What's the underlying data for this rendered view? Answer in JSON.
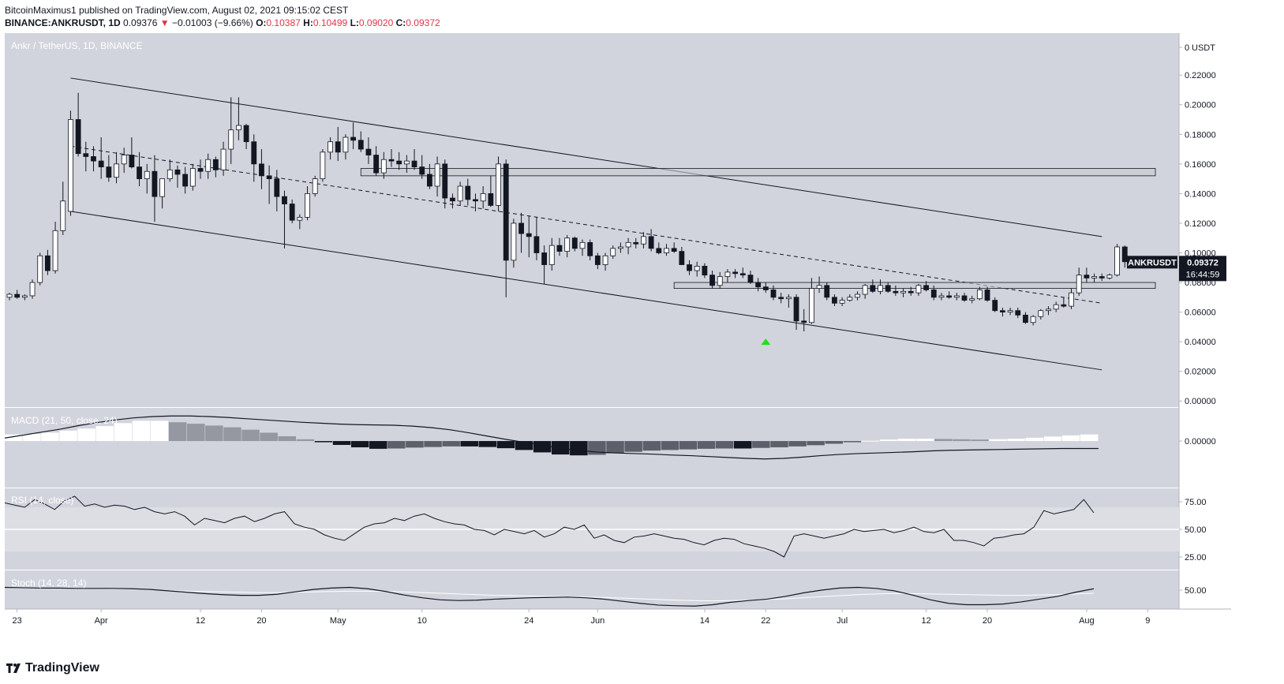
{
  "header": {
    "publisher": "BitcoinMaximus1 published on TradingView.com, August 02, 2021 09:15:02 CEST",
    "symbol_line": "BINANCE:ANKRUSDT, 1D",
    "last": "0.09376",
    "change_arrow": "▼",
    "change": "−0.01003 (−9.66%)",
    "o_label": "O:",
    "o": "0.10387",
    "h_label": "H:",
    "h": "0.10499",
    "l_label": "L:",
    "l": "0.09020",
    "c_label": "C:",
    "c": "0.09372"
  },
  "footer": {
    "brand": "TradingView"
  },
  "colors": {
    "panel_bg": "#d1d4dc",
    "bull": "#ffffff",
    "bear": "#131722",
    "accent": "#e0354a",
    "signal": "#22dd22"
  },
  "chart_data": [
    {
      "type": "candlestick",
      "title": "Ankr / TetherUS, 1D, BINANCE",
      "currency_label": "USDT",
      "y_ticks": [
        "0.22000",
        "0.20000",
        "0.18000",
        "0.16000",
        "0.14000",
        "0.12000",
        "0.10000",
        "0.08000",
        "0.06000",
        "0.04000",
        "0.02000",
        "0.00000"
      ],
      "y_top_label": "0",
      "ylim": [
        -0.002,
        0.243
      ],
      "x_ticks": [
        "23",
        "Apr",
        "12",
        "20",
        "May",
        "10",
        "24",
        "Jun",
        "14",
        "22",
        "Jul",
        "12",
        "20",
        "Aug",
        "9"
      ],
      "last_price_tag": "0.09372",
      "countdown": "16:44:59",
      "symbol_tag": "ANKRUSDT",
      "candles": [
        [
          0.07,
          0.073,
          0.068,
          0.072
        ],
        [
          0.072,
          0.075,
          0.069,
          0.07
        ],
        [
          0.07,
          0.072,
          0.068,
          0.071
        ],
        [
          0.071,
          0.082,
          0.069,
          0.08
        ],
        [
          0.08,
          0.1,
          0.078,
          0.098
        ],
        [
          0.098,
          0.102,
          0.085,
          0.088
        ],
        [
          0.088,
          0.121,
          0.086,
          0.115
        ],
        [
          0.115,
          0.148,
          0.112,
          0.135
        ],
        [
          0.128,
          0.196,
          0.125,
          0.19
        ],
        [
          0.19,
          0.208,
          0.165,
          0.167
        ],
        [
          0.167,
          0.175,
          0.155,
          0.165
        ],
        [
          0.165,
          0.172,
          0.155,
          0.162
        ],
        [
          0.162,
          0.178,
          0.15,
          0.158
        ],
        [
          0.158,
          0.166,
          0.148,
          0.151
        ],
        [
          0.151,
          0.168,
          0.147,
          0.16
        ],
        [
          0.16,
          0.171,
          0.154,
          0.166
        ],
        [
          0.166,
          0.178,
          0.157,
          0.158
        ],
        [
          0.158,
          0.168,
          0.145,
          0.15
        ],
        [
          0.15,
          0.16,
          0.14,
          0.155
        ],
        [
          0.155,
          0.166,
          0.121,
          0.138
        ],
        [
          0.138,
          0.15,
          0.13,
          0.15
        ],
        [
          0.15,
          0.163,
          0.148,
          0.156
        ],
        [
          0.156,
          0.159,
          0.144,
          0.153
        ],
        [
          0.153,
          0.158,
          0.14,
          0.145
        ],
        [
          0.145,
          0.16,
          0.142,
          0.157
        ],
        [
          0.157,
          0.163,
          0.15,
          0.155
        ],
        [
          0.155,
          0.167,
          0.15,
          0.163
        ],
        [
          0.163,
          0.165,
          0.151,
          0.156
        ],
        [
          0.156,
          0.175,
          0.152,
          0.17
        ],
        [
          0.17,
          0.205,
          0.16,
          0.183
        ],
        [
          0.183,
          0.205,
          0.176,
          0.186
        ],
        [
          0.186,
          0.187,
          0.17,
          0.175
        ],
        [
          0.175,
          0.18,
          0.148,
          0.16
        ],
        [
          0.16,
          0.17,
          0.143,
          0.152
        ],
        [
          0.152,
          0.159,
          0.133,
          0.15
        ],
        [
          0.15,
          0.156,
          0.128,
          0.138
        ],
        [
          0.138,
          0.142,
          0.103,
          0.133
        ],
        [
          0.133,
          0.136,
          0.12,
          0.122
        ],
        [
          0.122,
          0.126,
          0.116,
          0.124
        ],
        [
          0.124,
          0.145,
          0.122,
          0.14
        ],
        [
          0.14,
          0.152,
          0.138,
          0.15
        ],
        [
          0.15,
          0.17,
          0.148,
          0.168
        ],
        [
          0.168,
          0.178,
          0.163,
          0.175
        ],
        [
          0.175,
          0.185,
          0.162,
          0.168
        ],
        [
          0.168,
          0.18,
          0.163,
          0.178
        ],
        [
          0.178,
          0.188,
          0.17,
          0.176
        ],
        [
          0.176,
          0.182,
          0.168,
          0.17
        ],
        [
          0.17,
          0.178,
          0.16,
          0.166
        ],
        [
          0.166,
          0.172,
          0.152,
          0.154
        ],
        [
          0.154,
          0.168,
          0.15,
          0.163
        ],
        [
          0.163,
          0.17,
          0.158,
          0.162
        ],
        [
          0.162,
          0.168,
          0.156,
          0.16
        ],
        [
          0.16,
          0.166,
          0.154,
          0.162
        ],
        [
          0.162,
          0.17,
          0.156,
          0.158
        ],
        [
          0.158,
          0.166,
          0.15,
          0.153
        ],
        [
          0.153,
          0.16,
          0.143,
          0.145
        ],
        [
          0.145,
          0.165,
          0.138,
          0.16
        ],
        [
          0.16,
          0.163,
          0.13,
          0.137
        ],
        [
          0.137,
          0.14,
          0.13,
          0.135
        ],
        [
          0.135,
          0.148,
          0.132,
          0.145
        ],
        [
          0.145,
          0.15,
          0.132,
          0.136
        ],
        [
          0.136,
          0.14,
          0.128,
          0.135
        ],
        [
          0.135,
          0.145,
          0.13,
          0.14
        ],
        [
          0.14,
          0.152,
          0.131,
          0.132
        ],
        [
          0.132,
          0.165,
          0.128,
          0.16
        ],
        [
          0.16,
          0.163,
          0.07,
          0.095
        ],
        [
          0.095,
          0.123,
          0.09,
          0.12
        ],
        [
          0.12,
          0.127,
          0.1,
          0.113
        ],
        [
          0.113,
          0.125,
          0.097,
          0.111
        ],
        [
          0.111,
          0.124,
          0.095,
          0.1
        ],
        [
          0.1,
          0.105,
          0.079,
          0.092
        ],
        [
          0.092,
          0.11,
          0.088,
          0.105
        ],
        [
          0.105,
          0.11,
          0.098,
          0.101
        ],
        [
          0.101,
          0.112,
          0.097,
          0.11
        ],
        [
          0.11,
          0.111,
          0.101,
          0.103
        ],
        [
          0.103,
          0.109,
          0.098,
          0.107
        ],
        [
          0.107,
          0.109,
          0.095,
          0.098
        ],
        [
          0.098,
          0.1,
          0.089,
          0.092
        ],
        [
          0.092,
          0.1,
          0.088,
          0.098
        ],
        [
          0.098,
          0.105,
          0.096,
          0.103
        ],
        [
          0.103,
          0.107,
          0.1,
          0.104
        ],
        [
          0.104,
          0.11,
          0.099,
          0.107
        ],
        [
          0.107,
          0.11,
          0.103,
          0.106
        ],
        [
          0.106,
          0.114,
          0.103,
          0.111
        ],
        [
          0.111,
          0.116,
          0.101,
          0.103
        ],
        [
          0.103,
          0.107,
          0.099,
          0.1
        ],
        [
          0.1,
          0.106,
          0.098,
          0.103
        ],
        [
          0.103,
          0.107,
          0.1,
          0.101
        ],
        [
          0.101,
          0.104,
          0.092,
          0.092
        ],
        [
          0.092,
          0.095,
          0.085,
          0.088
        ],
        [
          0.088,
          0.094,
          0.084,
          0.091
        ],
        [
          0.091,
          0.093,
          0.083,
          0.085
        ],
        [
          0.085,
          0.088,
          0.076,
          0.078
        ],
        [
          0.078,
          0.087,
          0.076,
          0.084
        ],
        [
          0.084,
          0.089,
          0.08,
          0.087
        ],
        [
          0.087,
          0.089,
          0.083,
          0.086
        ],
        [
          0.086,
          0.09,
          0.083,
          0.085
        ],
        [
          0.085,
          0.088,
          0.079,
          0.08
        ],
        [
          0.08,
          0.083,
          0.074,
          0.077
        ],
        [
          0.077,
          0.08,
          0.073,
          0.075
        ],
        [
          0.075,
          0.078,
          0.068,
          0.07
        ],
        [
          0.07,
          0.073,
          0.066,
          0.069
        ],
        [
          0.069,
          0.072,
          0.063,
          0.07
        ],
        [
          0.07,
          0.072,
          0.048,
          0.054
        ],
        [
          0.054,
          0.062,
          0.047,
          0.053
        ],
        [
          0.053,
          0.083,
          0.052,
          0.076
        ],
        [
          0.076,
          0.084,
          0.073,
          0.078
        ],
        [
          0.078,
          0.08,
          0.068,
          0.07
        ],
        [
          0.07,
          0.072,
          0.064,
          0.066
        ],
        [
          0.066,
          0.07,
          0.064,
          0.068
        ],
        [
          0.068,
          0.072,
          0.067,
          0.07
        ],
        [
          0.07,
          0.074,
          0.068,
          0.072
        ],
        [
          0.072,
          0.079,
          0.069,
          0.078
        ],
        [
          0.078,
          0.082,
          0.073,
          0.074
        ],
        [
          0.074,
          0.082,
          0.072,
          0.078
        ],
        [
          0.078,
          0.08,
          0.073,
          0.074
        ],
        [
          0.074,
          0.078,
          0.071,
          0.073
        ],
        [
          0.073,
          0.076,
          0.07,
          0.074
        ],
        [
          0.074,
          0.077,
          0.071,
          0.073
        ],
        [
          0.073,
          0.079,
          0.071,
          0.078
        ],
        [
          0.078,
          0.081,
          0.074,
          0.075
        ],
        [
          0.075,
          0.078,
          0.068,
          0.07
        ],
        [
          0.07,
          0.073,
          0.068,
          0.071
        ],
        [
          0.071,
          0.074,
          0.069,
          0.07
        ],
        [
          0.07,
          0.073,
          0.068,
          0.071
        ],
        [
          0.071,
          0.073,
          0.067,
          0.068
        ],
        [
          0.068,
          0.071,
          0.066,
          0.069
        ],
        [
          0.069,
          0.077,
          0.068,
          0.075
        ],
        [
          0.075,
          0.077,
          0.067,
          0.068
        ],
        [
          0.068,
          0.07,
          0.06,
          0.061
        ],
        [
          0.061,
          0.063,
          0.057,
          0.06
        ],
        [
          0.06,
          0.063,
          0.058,
          0.061
        ],
        [
          0.061,
          0.063,
          0.056,
          0.058
        ],
        [
          0.058,
          0.06,
          0.052,
          0.053
        ],
        [
          0.053,
          0.058,
          0.051,
          0.057
        ],
        [
          0.057,
          0.062,
          0.055,
          0.061
        ],
        [
          0.061,
          0.064,
          0.058,
          0.062
        ],
        [
          0.062,
          0.067,
          0.06,
          0.065
        ],
        [
          0.065,
          0.07,
          0.063,
          0.064
        ],
        [
          0.064,
          0.076,
          0.062,
          0.073
        ],
        [
          0.073,
          0.09,
          0.071,
          0.085
        ],
        [
          0.085,
          0.09,
          0.08,
          0.083
        ],
        [
          0.083,
          0.086,
          0.08,
          0.084
        ],
        [
          0.084,
          0.086,
          0.081,
          0.083
        ],
        [
          0.083,
          0.086,
          0.082,
          0.085
        ],
        [
          0.085,
          0.106,
          0.084,
          0.104
        ],
        [
          0.104,
          0.105,
          0.09,
          0.094
        ]
      ]
    },
    {
      "type": "bar+line",
      "title": "MACD (21, 50, close, 24)",
      "y_ticks": [
        "0.00000"
      ],
      "ylim": [
        -0.014,
        0.009
      ],
      "macd": [
        0.001,
        0.002,
        0.003,
        0.004,
        0.0052,
        0.0062,
        0.0071,
        0.0078,
        0.0082,
        0.0084,
        0.0084,
        0.0082,
        0.0079,
        0.0075,
        0.0071,
        0.0067,
        0.0063,
        0.006,
        0.0057,
        0.0055,
        0.0054,
        0.0053,
        0.005,
        0.0045,
        0.0038,
        0.0028,
        0.0017,
        0.0006,
        -0.0004,
        -0.0014,
        -0.0024,
        -0.0032,
        -0.0037,
        -0.004,
        -0.0042,
        -0.0044,
        -0.0047,
        -0.0049,
        -0.0052,
        -0.0055,
        -0.0058,
        -0.006,
        -0.0058,
        -0.0054,
        -0.0049,
        -0.0045,
        -0.0042,
        -0.004,
        -0.0038,
        -0.0036,
        -0.0033,
        -0.0031,
        -0.003,
        -0.0029,
        -0.0028,
        -0.0027,
        -0.0026,
        -0.0025,
        -0.0025,
        -0.0025
      ],
      "hist": [
        0.0022,
        0.0024,
        0.0028,
        0.0035,
        0.0042,
        0.005,
        0.006,
        0.0068,
        0.0068,
        0.0063,
        0.0058,
        0.0052,
        0.0046,
        0.0038,
        0.0028,
        0.0016,
        0.0006,
        -0.0004,
        -0.0013,
        -0.0021,
        -0.0026,
        -0.0025,
        -0.0022,
        -0.002,
        -0.0018,
        -0.0018,
        -0.002,
        -0.0024,
        -0.003,
        -0.0038,
        -0.0045,
        -0.0048,
        -0.0046,
        -0.0041,
        -0.0036,
        -0.0032,
        -0.003,
        -0.0028,
        -0.0026,
        -0.0025,
        -0.0025,
        -0.0023,
        -0.0021,
        -0.0018,
        -0.0014,
        -0.0009,
        -0.0004,
        0.0001,
        0.0005,
        0.0008,
        0.0008,
        0.0007,
        0.0006,
        0.0005,
        0.0006,
        0.0008,
        0.0011,
        0.0015,
        0.0019,
        0.0022
      ]
    },
    {
      "type": "line",
      "title": "RSI (14, close)",
      "y_ticks": [
        "75.00",
        "50.00",
        "25.00"
      ],
      "ylim": [
        15,
        85
      ],
      "values": [
        74,
        72,
        70,
        77,
        73,
        68,
        76,
        80,
        71,
        73,
        70,
        72,
        71,
        68,
        70,
        66,
        64,
        66,
        62,
        54,
        60,
        58,
        56,
        60,
        62,
        57,
        60,
        64,
        66,
        55,
        52,
        50,
        45,
        42,
        40,
        46,
        52,
        55,
        56,
        60,
        58,
        62,
        64,
        60,
        57,
        55,
        54,
        50,
        49,
        45,
        50,
        48,
        46,
        49,
        43,
        46,
        52,
        50,
        54,
        42,
        45,
        40,
        38,
        43,
        44,
        46,
        44,
        42,
        41,
        38,
        36,
        40,
        42,
        41,
        37,
        35,
        33,
        30,
        25,
        44,
        46,
        44,
        42,
        44,
        46,
        50,
        48,
        49,
        50,
        47,
        49,
        52,
        48,
        47,
        50,
        40,
        40,
        38,
        35,
        42,
        43,
        45,
        46,
        52,
        67,
        64,
        66,
        68,
        77,
        65
      ]
    },
    {
      "type": "line",
      "title": "Stoch (14, 28, 14)",
      "y_ticks": [
        "50.00"
      ],
      "ylim": [
        0,
        100
      ],
      "k": [
        58,
        57,
        56,
        56,
        55,
        55,
        55,
        54,
        52,
        48,
        44,
        40,
        37,
        35,
        35,
        38,
        45,
        52,
        56,
        58,
        54,
        46,
        36,
        28,
        22,
        20,
        21,
        24,
        26,
        28,
        29,
        30,
        28,
        24,
        18,
        12,
        7,
        5,
        4,
        8,
        15,
        20,
        24,
        32,
        42,
        50,
        56,
        58,
        55,
        48,
        36,
        22,
        12,
        8,
        8,
        10,
        16,
        24,
        32,
        44,
        54
      ],
      "d": [
        58,
        58,
        57,
        57,
        56,
        55,
        54,
        53,
        51,
        49,
        47,
        46,
        45,
        44,
        43,
        43,
        44,
        45,
        46,
        47,
        47,
        46,
        45,
        43,
        41,
        39,
        37,
        35,
        34,
        33,
        32,
        31,
        30,
        29,
        27,
        25,
        23,
        21,
        20,
        19,
        20,
        21,
        23,
        25,
        28,
        31,
        34,
        37,
        39,
        40,
        40,
        39,
        38,
        37,
        36,
        35,
        35,
        36,
        37,
        39,
        41
      ]
    }
  ]
}
